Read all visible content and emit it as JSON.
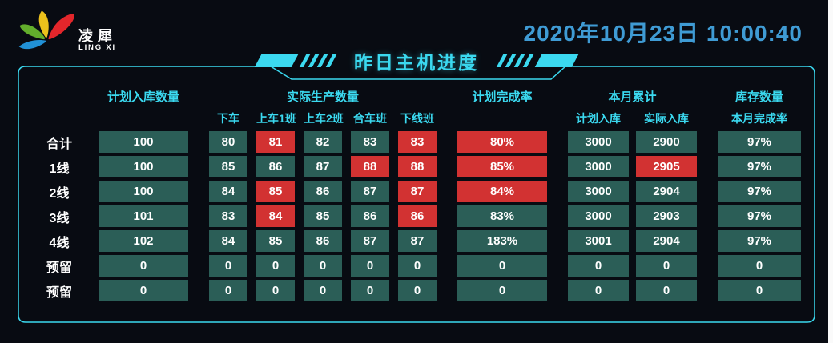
{
  "brand": {
    "name_cn": "凌犀",
    "name_en": "LING XI"
  },
  "clock": {
    "datetime": "2020年10月23日 10:00:40"
  },
  "banner": {
    "title": "昨日主机进度"
  },
  "colors": {
    "accent_cyan": "#3bd9f0",
    "cell_teal": "#2b5e57",
    "cell_alert_red": "#d23232",
    "clock_blue": "#3f9bd4",
    "background": "#080b12",
    "logo_red": "#e3262b",
    "logo_yellow": "#ecc11c",
    "logo_green": "#63ae2c",
    "logo_blue": "#2191d6"
  },
  "table": {
    "groups": {
      "plan": "计划入库数量",
      "actual": "实际生产数量",
      "rate": "计划完成率",
      "month": "本月累计",
      "inventory": "库存数量"
    },
    "sub_headers": {
      "off_truck": "下车",
      "on_truck_1": "上车1班",
      "on_truck_2": "上车2班",
      "assembly": "合车班",
      "offline": "下线班",
      "month_plan": "计划入库",
      "month_actual": "实际入库",
      "month_rate": "本月完成率"
    },
    "rows": [
      {
        "label": "合计",
        "cells": [
          {
            "v": "100"
          },
          {
            "v": "80"
          },
          {
            "v": "81",
            "alert": true
          },
          {
            "v": "82"
          },
          {
            "v": "83"
          },
          {
            "v": "83",
            "alert": true
          },
          {
            "v": "80%",
            "alert": true
          },
          {
            "v": "3000"
          },
          {
            "v": "2900"
          },
          {
            "v": "97%"
          }
        ]
      },
      {
        "label": "1线",
        "cells": [
          {
            "v": "100"
          },
          {
            "v": "85"
          },
          {
            "v": "86"
          },
          {
            "v": "87"
          },
          {
            "v": "88",
            "alert": true
          },
          {
            "v": "88",
            "alert": true
          },
          {
            "v": "85%",
            "alert": true
          },
          {
            "v": "3000"
          },
          {
            "v": "2905",
            "alert": true
          },
          {
            "v": "97%"
          }
        ]
      },
      {
        "label": "2线",
        "cells": [
          {
            "v": "100"
          },
          {
            "v": "84"
          },
          {
            "v": "85",
            "alert": true
          },
          {
            "v": "86"
          },
          {
            "v": "87"
          },
          {
            "v": "87",
            "alert": true
          },
          {
            "v": "84%",
            "alert": true
          },
          {
            "v": "3000"
          },
          {
            "v": "2904"
          },
          {
            "v": "97%"
          }
        ]
      },
      {
        "label": "3线",
        "cells": [
          {
            "v": "101"
          },
          {
            "v": "83"
          },
          {
            "v": "84",
            "alert": true
          },
          {
            "v": "85"
          },
          {
            "v": "86"
          },
          {
            "v": "86",
            "alert": true
          },
          {
            "v": "83%"
          },
          {
            "v": "3000"
          },
          {
            "v": "2903"
          },
          {
            "v": "97%"
          }
        ]
      },
      {
        "label": "4线",
        "cells": [
          {
            "v": "102"
          },
          {
            "v": "84"
          },
          {
            "v": "85"
          },
          {
            "v": "86"
          },
          {
            "v": "87"
          },
          {
            "v": "87"
          },
          {
            "v": "183%"
          },
          {
            "v": "3001"
          },
          {
            "v": "2904"
          },
          {
            "v": "97%"
          }
        ]
      },
      {
        "label": "预留",
        "cells": [
          {
            "v": "0"
          },
          {
            "v": "0"
          },
          {
            "v": "0"
          },
          {
            "v": "0"
          },
          {
            "v": "0"
          },
          {
            "v": "0"
          },
          {
            "v": "0"
          },
          {
            "v": "0"
          },
          {
            "v": "0"
          },
          {
            "v": "0"
          }
        ]
      },
      {
        "label": "预留",
        "cells": [
          {
            "v": "0"
          },
          {
            "v": "0"
          },
          {
            "v": "0"
          },
          {
            "v": "0"
          },
          {
            "v": "0"
          },
          {
            "v": "0"
          },
          {
            "v": "0"
          },
          {
            "v": "0"
          },
          {
            "v": "0"
          },
          {
            "v": "0"
          }
        ]
      }
    ]
  }
}
